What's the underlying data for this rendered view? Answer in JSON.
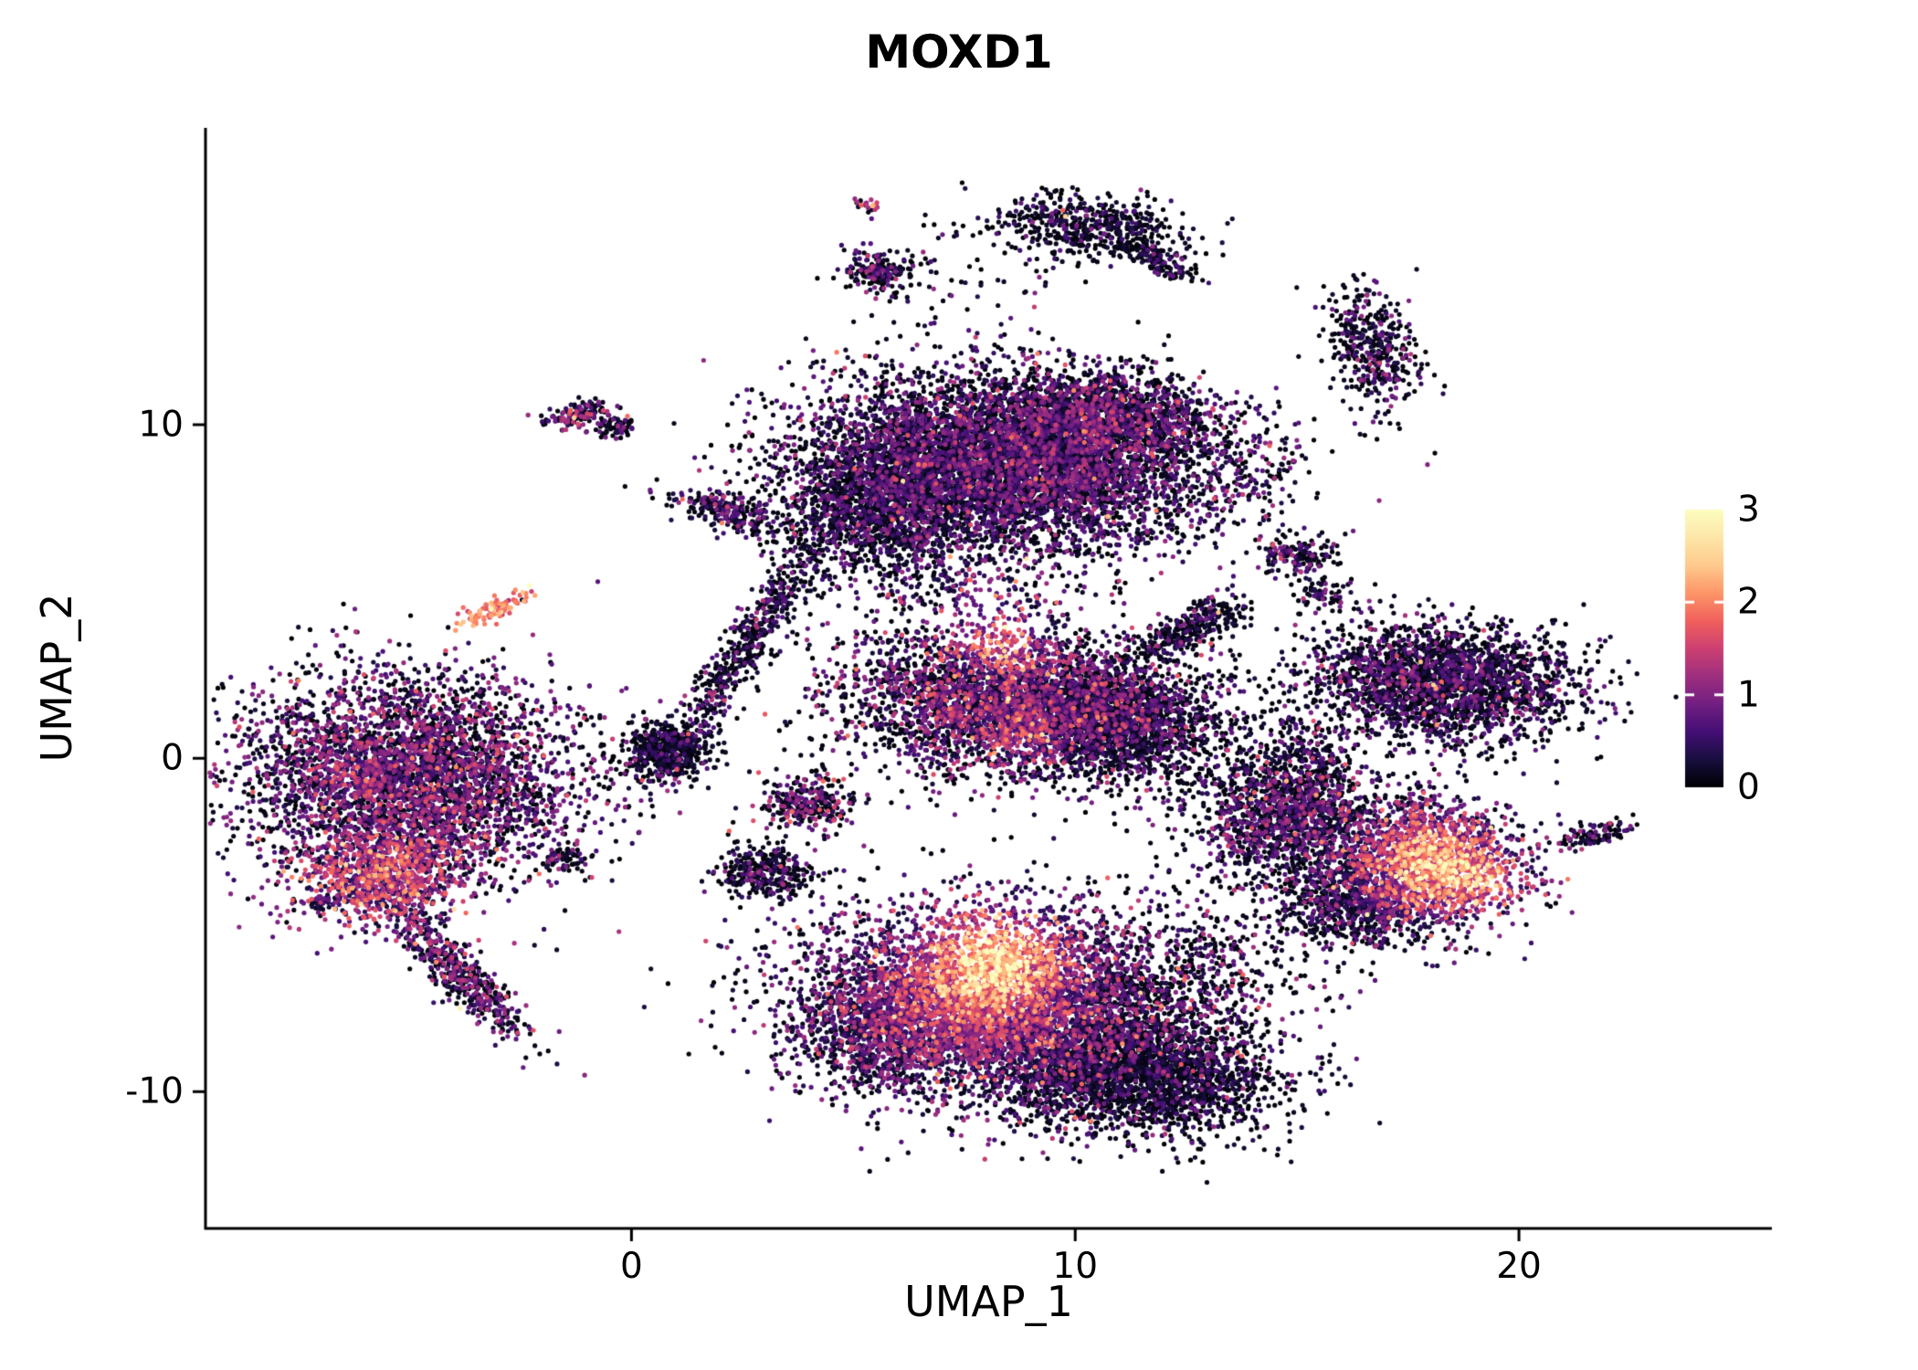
{
  "chart_data": {
    "type": "scatter",
    "title": "MOXD1",
    "xlabel": "UMAP_1",
    "ylabel": "UMAP_2",
    "xlim": [
      -9.6,
      25.7
    ],
    "ylim": [
      -14.1,
      18.9
    ],
    "x_ticks": [
      0,
      10,
      20
    ],
    "y_ticks": [
      -10,
      0,
      10
    ],
    "grid": false,
    "legend": {
      "type": "colorbar",
      "position": "right",
      "ticks": [
        0,
        1,
        2,
        3
      ]
    },
    "expr_range": [
      0,
      3
    ],
    "colormap": {
      "name": "magma",
      "stops": [
        [
          0.0,
          "#000004"
        ],
        [
          0.1,
          "#180f3e"
        ],
        [
          0.2,
          "#440f76"
        ],
        [
          0.3,
          "#721f81"
        ],
        [
          0.4,
          "#9e2f7f"
        ],
        [
          0.5,
          "#cd4071"
        ],
        [
          0.6,
          "#f1605d"
        ],
        [
          0.7,
          "#fd9668"
        ],
        [
          0.8,
          "#feca8d"
        ],
        [
          0.9,
          "#fde7a9"
        ],
        [
          1.0,
          "#fcfdbf"
        ]
      ]
    },
    "colors": {
      "background": "#ffffff",
      "axis": "#000000",
      "text": "#000000",
      "colorbar_tick": "#ffffff"
    },
    "point_radius_px": 2.6,
    "seed": 42,
    "outlier_frac": 0.004,
    "outlier_boost": 1.3,
    "clusters": [
      {
        "name": "left-main",
        "n": 4200,
        "cx": -5.0,
        "cy": -0.6,
        "sx": 1.85,
        "sy": 1.5,
        "rot": -8,
        "zero": 0.38,
        "mean": 0.75,
        "spread": 0.45
      },
      {
        "name": "left-lower-lobe",
        "n": 900,
        "cx": -5.5,
        "cy": -3.5,
        "sx": 1.0,
        "sy": 0.7,
        "rot": 10,
        "zero": 0.22,
        "mean": 1.0,
        "spread": 0.5
      },
      {
        "name": "left-tail",
        "n": 520,
        "cx": -3.9,
        "cy": -6.4,
        "sx": 1.25,
        "sy": 0.3,
        "rot": -53,
        "zero": 0.38,
        "mean": 0.7,
        "spread": 0.45
      },
      {
        "name": "salmon-streak",
        "n": 90,
        "cx": -3.05,
        "cy": 4.45,
        "sx": 0.5,
        "sy": 0.15,
        "rot": 25,
        "zero": 0.02,
        "mean": 1.9,
        "spread": 0.3
      },
      {
        "name": "isle-nw-a",
        "n": 130,
        "cx": -1.15,
        "cy": 10.3,
        "sx": 0.38,
        "sy": 0.2,
        "rot": 10,
        "zero": 0.42,
        "mean": 0.8,
        "spread": 0.5
      },
      {
        "name": "isle-nw-b",
        "n": 70,
        "cx": -0.35,
        "cy": 9.9,
        "sx": 0.22,
        "sy": 0.16,
        "rot": 0,
        "zero": 0.55,
        "mean": 0.6,
        "spread": 0.4
      },
      {
        "name": "isle-n-comma",
        "n": 230,
        "cx": 2.2,
        "cy": 7.4,
        "sx": 0.75,
        "sy": 0.25,
        "rot": -20,
        "zero": 0.5,
        "mean": 0.6,
        "spread": 0.4
      },
      {
        "name": "top-main",
        "n": 6200,
        "cx": 8.5,
        "cy": 8.9,
        "sx": 2.3,
        "sy": 1.3,
        "rot": -5,
        "zero": 0.45,
        "mean": 0.6,
        "spread": 0.4
      },
      {
        "name": "top-main-upper",
        "n": 1400,
        "cx": 10.6,
        "cy": 10.2,
        "sx": 1.25,
        "sy": 0.7,
        "rot": 0,
        "zero": 0.42,
        "mean": 0.6,
        "spread": 0.45
      },
      {
        "name": "top-left-lobe",
        "n": 1400,
        "cx": 5.7,
        "cy": 7.6,
        "sx": 1.1,
        "sy": 1.0,
        "rot": 0,
        "zero": 0.62,
        "mean": 0.45,
        "spread": 0.35
      },
      {
        "name": "stream-mid",
        "n": 600,
        "cx": 2.6,
        "cy": 3.4,
        "sx": 2.2,
        "sy": 0.28,
        "rot": 65,
        "zero": 0.55,
        "mean": 0.5,
        "spread": 0.4
      },
      {
        "name": "mid-main",
        "n": 3200,
        "cx": 8.7,
        "cy": 1.7,
        "sx": 1.75,
        "sy": 1.05,
        "rot": -5,
        "zero": 0.35,
        "mean": 0.75,
        "spread": 0.5
      },
      {
        "name": "mid-right-lobe",
        "n": 1500,
        "cx": 10.9,
        "cy": 1.1,
        "sx": 1.15,
        "sy": 0.85,
        "rot": 0,
        "zero": 0.65,
        "mean": 0.4,
        "spread": 0.35
      },
      {
        "name": "mid-wing",
        "n": 320,
        "cx": 12.6,
        "cy": 3.9,
        "sx": 0.75,
        "sy": 0.3,
        "rot": 35,
        "zero": 0.6,
        "mean": 0.45,
        "spread": 0.35
      },
      {
        "name": "isle-top-ring",
        "n": 520,
        "cx": 10.3,
        "cy": 15.9,
        "sx": 1.05,
        "sy": 0.5,
        "rot": -8,
        "zero": 0.7,
        "mean": 0.35,
        "spread": 0.3
      },
      {
        "name": "isle-top-ring-tail",
        "n": 130,
        "cx": 11.9,
        "cy": 14.9,
        "sx": 0.5,
        "sy": 0.18,
        "rot": -40,
        "zero": 0.7,
        "mean": 0.35,
        "spread": 0.3
      },
      {
        "name": "isle-top-small",
        "n": 190,
        "cx": 5.6,
        "cy": 14.6,
        "sx": 0.42,
        "sy": 0.3,
        "rot": 0,
        "zero": 0.5,
        "mean": 0.6,
        "spread": 0.5
      },
      {
        "name": "isle-top-tiny",
        "n": 22,
        "cx": 5.3,
        "cy": 16.6,
        "sx": 0.18,
        "sy": 0.12,
        "rot": 0,
        "zero": 0.3,
        "mean": 1.5,
        "spread": 0.6
      },
      {
        "name": "isle-right-top",
        "n": 420,
        "cx": 16.7,
        "cy": 12.2,
        "sx": 0.5,
        "sy": 0.95,
        "rot": 15,
        "zero": 0.6,
        "mean": 0.5,
        "spread": 0.4
      },
      {
        "name": "right-mid-small-a",
        "n": 150,
        "cx": 15.0,
        "cy": 6.1,
        "sx": 0.45,
        "sy": 0.3,
        "rot": 0,
        "zero": 0.55,
        "mean": 0.55,
        "spread": 0.4
      },
      {
        "name": "right-mid-small-b",
        "n": 70,
        "cx": 15.6,
        "cy": 4.9,
        "sx": 0.35,
        "sy": 0.25,
        "rot": 0,
        "zero": 0.6,
        "mean": 0.5,
        "spread": 0.4
      },
      {
        "name": "right-mid-tall",
        "n": 300,
        "cx": 15.2,
        "cy": -0.4,
        "sx": 0.5,
        "sy": 0.85,
        "rot": 0,
        "zero": 0.5,
        "mean": 0.6,
        "spread": 0.45
      },
      {
        "name": "right-main",
        "n": 2400,
        "cx": 18.2,
        "cy": 2.3,
        "sx": 1.55,
        "sy": 0.85,
        "rot": -5,
        "zero": 0.55,
        "mean": 0.5,
        "spread": 0.4
      },
      {
        "name": "right-lower-a",
        "n": 1200,
        "cx": 14.8,
        "cy": -1.9,
        "sx": 1.0,
        "sy": 0.95,
        "rot": 0,
        "zero": 0.5,
        "mean": 0.6,
        "spread": 0.45
      },
      {
        "name": "right-lower-b",
        "n": 1900,
        "cx": 17.9,
        "cy": -3.1,
        "sx": 1.15,
        "sy": 0.95,
        "rot": -10,
        "zero": 0.3,
        "mean": 0.8,
        "spread": 0.5
      },
      {
        "name": "right-lower-c",
        "n": 700,
        "cx": 16.3,
        "cy": -4.4,
        "sx": 0.9,
        "sy": 0.6,
        "rot": 0,
        "zero": 0.62,
        "mean": 0.45,
        "spread": 0.35
      },
      {
        "name": "bottom-main",
        "n": 6000,
        "cx": 8.6,
        "cy": -7.4,
        "sx": 2.35,
        "sy": 1.45,
        "rot": -5,
        "zero": 0.4,
        "mean": 0.65,
        "spread": 0.5
      },
      {
        "name": "bottom-right-lobe",
        "n": 2000,
        "cx": 11.5,
        "cy": -9.6,
        "sx": 1.5,
        "sy": 0.85,
        "rot": -8,
        "zero": 0.72,
        "mean": 0.35,
        "spread": 0.3
      },
      {
        "name": "bottom-left-edge",
        "n": 800,
        "cx": 5.7,
        "cy": -8.3,
        "sx": 0.95,
        "sy": 0.9,
        "rot": 0,
        "zero": 0.45,
        "mean": 0.6,
        "spread": 0.45
      },
      {
        "name": "far-right-tiny",
        "n": 110,
        "cx": 21.7,
        "cy": -2.3,
        "sx": 0.45,
        "sy": 0.16,
        "rot": 20,
        "zero": 0.5,
        "mean": 0.7,
        "spread": 0.5
      },
      {
        "name": "mid-small-black",
        "n": 480,
        "cx": 0.8,
        "cy": 0.2,
        "sx": 0.55,
        "sy": 0.42,
        "rot": 0,
        "zero": 0.75,
        "mean": 0.3,
        "spread": 0.3
      },
      {
        "name": "isle-mid-tiny-a",
        "n": 60,
        "cx": -1.5,
        "cy": -3.0,
        "sx": 0.3,
        "sy": 0.18,
        "rot": 0,
        "zero": 0.6,
        "mean": 0.5,
        "spread": 0.4
      },
      {
        "name": "isle-mid-tiny-b",
        "n": 40,
        "cx": -6.9,
        "cy": -4.3,
        "sx": 0.3,
        "sy": 0.15,
        "rot": 0,
        "zero": 0.55,
        "mean": 0.5,
        "spread": 0.4
      },
      {
        "name": "isle-starfish",
        "n": 330,
        "cx": 3.0,
        "cy": -3.4,
        "sx": 0.55,
        "sy": 0.4,
        "rot": 0,
        "zero": 0.6,
        "mean": 0.45,
        "spread": 0.4
      },
      {
        "name": "isle-mid-pair",
        "n": 280,
        "cx": 4.0,
        "cy": -1.4,
        "sx": 0.5,
        "sy": 0.38,
        "rot": 0,
        "zero": 0.45,
        "mean": 0.7,
        "spread": 0.5
      },
      {
        "name": "scatter-mid",
        "n": 320,
        "cx": 6.3,
        "cy": 1.5,
        "sx": 1.6,
        "sy": 1.6,
        "rot": 0,
        "zero": 0.6,
        "mean": 0.5,
        "spread": 0.4
      },
      {
        "name": "scatter-top-gap",
        "n": 260,
        "cx": 7.3,
        "cy": 5.2,
        "sx": 1.5,
        "sy": 0.9,
        "rot": 0,
        "zero": 0.5,
        "mean": 0.6,
        "spread": 0.45
      },
      {
        "name": "scatter-mid-right",
        "n": 200,
        "cx": 12.8,
        "cy": -0.5,
        "sx": 1.4,
        "sy": 1.0,
        "rot": 0,
        "zero": 0.65,
        "mean": 0.45,
        "spread": 0.35
      },
      {
        "name": "scatter-bottom-right",
        "n": 260,
        "cx": 13.3,
        "cy": -6.0,
        "sx": 1.3,
        "sy": 1.2,
        "rot": 0,
        "zero": 0.6,
        "mean": 0.5,
        "spread": 0.4
      },
      {
        "name": "scatter-ne",
        "n": 80,
        "cx": 13.6,
        "cy": 8.6,
        "sx": 0.95,
        "sy": 0.9,
        "rot": 0,
        "zero": 0.6,
        "mean": 0.5,
        "spread": 0.4
      },
      {
        "name": "scatter-top-sparse",
        "n": 60,
        "cx": 7.5,
        "cy": 14.3,
        "sx": 1.5,
        "sy": 0.9,
        "rot": 0,
        "zero": 0.6,
        "mean": 0.5,
        "spread": 0.4
      }
    ],
    "hotspots": [
      {
        "cx": 8.2,
        "cy": -6.0,
        "r": 1.0,
        "boost": 2.0
      },
      {
        "cx": 7.4,
        "cy": -7.0,
        "r": 1.6,
        "boost": 0.7
      },
      {
        "cx": 17.95,
        "cy": -3.2,
        "r": 0.85,
        "boost": 1.8
      },
      {
        "cx": 19.2,
        "cy": -3.6,
        "r": 0.6,
        "boost": 1.2
      },
      {
        "cx": 8.35,
        "cy": 3.55,
        "r": 0.6,
        "boost": 1.6
      },
      {
        "cx": 7.9,
        "cy": 5.1,
        "r": 0.4,
        "boost": 1.1
      },
      {
        "cx": 8.8,
        "cy": 0.7,
        "r": 0.5,
        "boost": 0.7
      },
      {
        "cx": -5.7,
        "cy": -3.7,
        "r": 0.9,
        "boost": 0.6
      },
      {
        "cx": -6.3,
        "cy": -0.4,
        "r": 0.5,
        "boost": 0.5
      }
    ]
  }
}
